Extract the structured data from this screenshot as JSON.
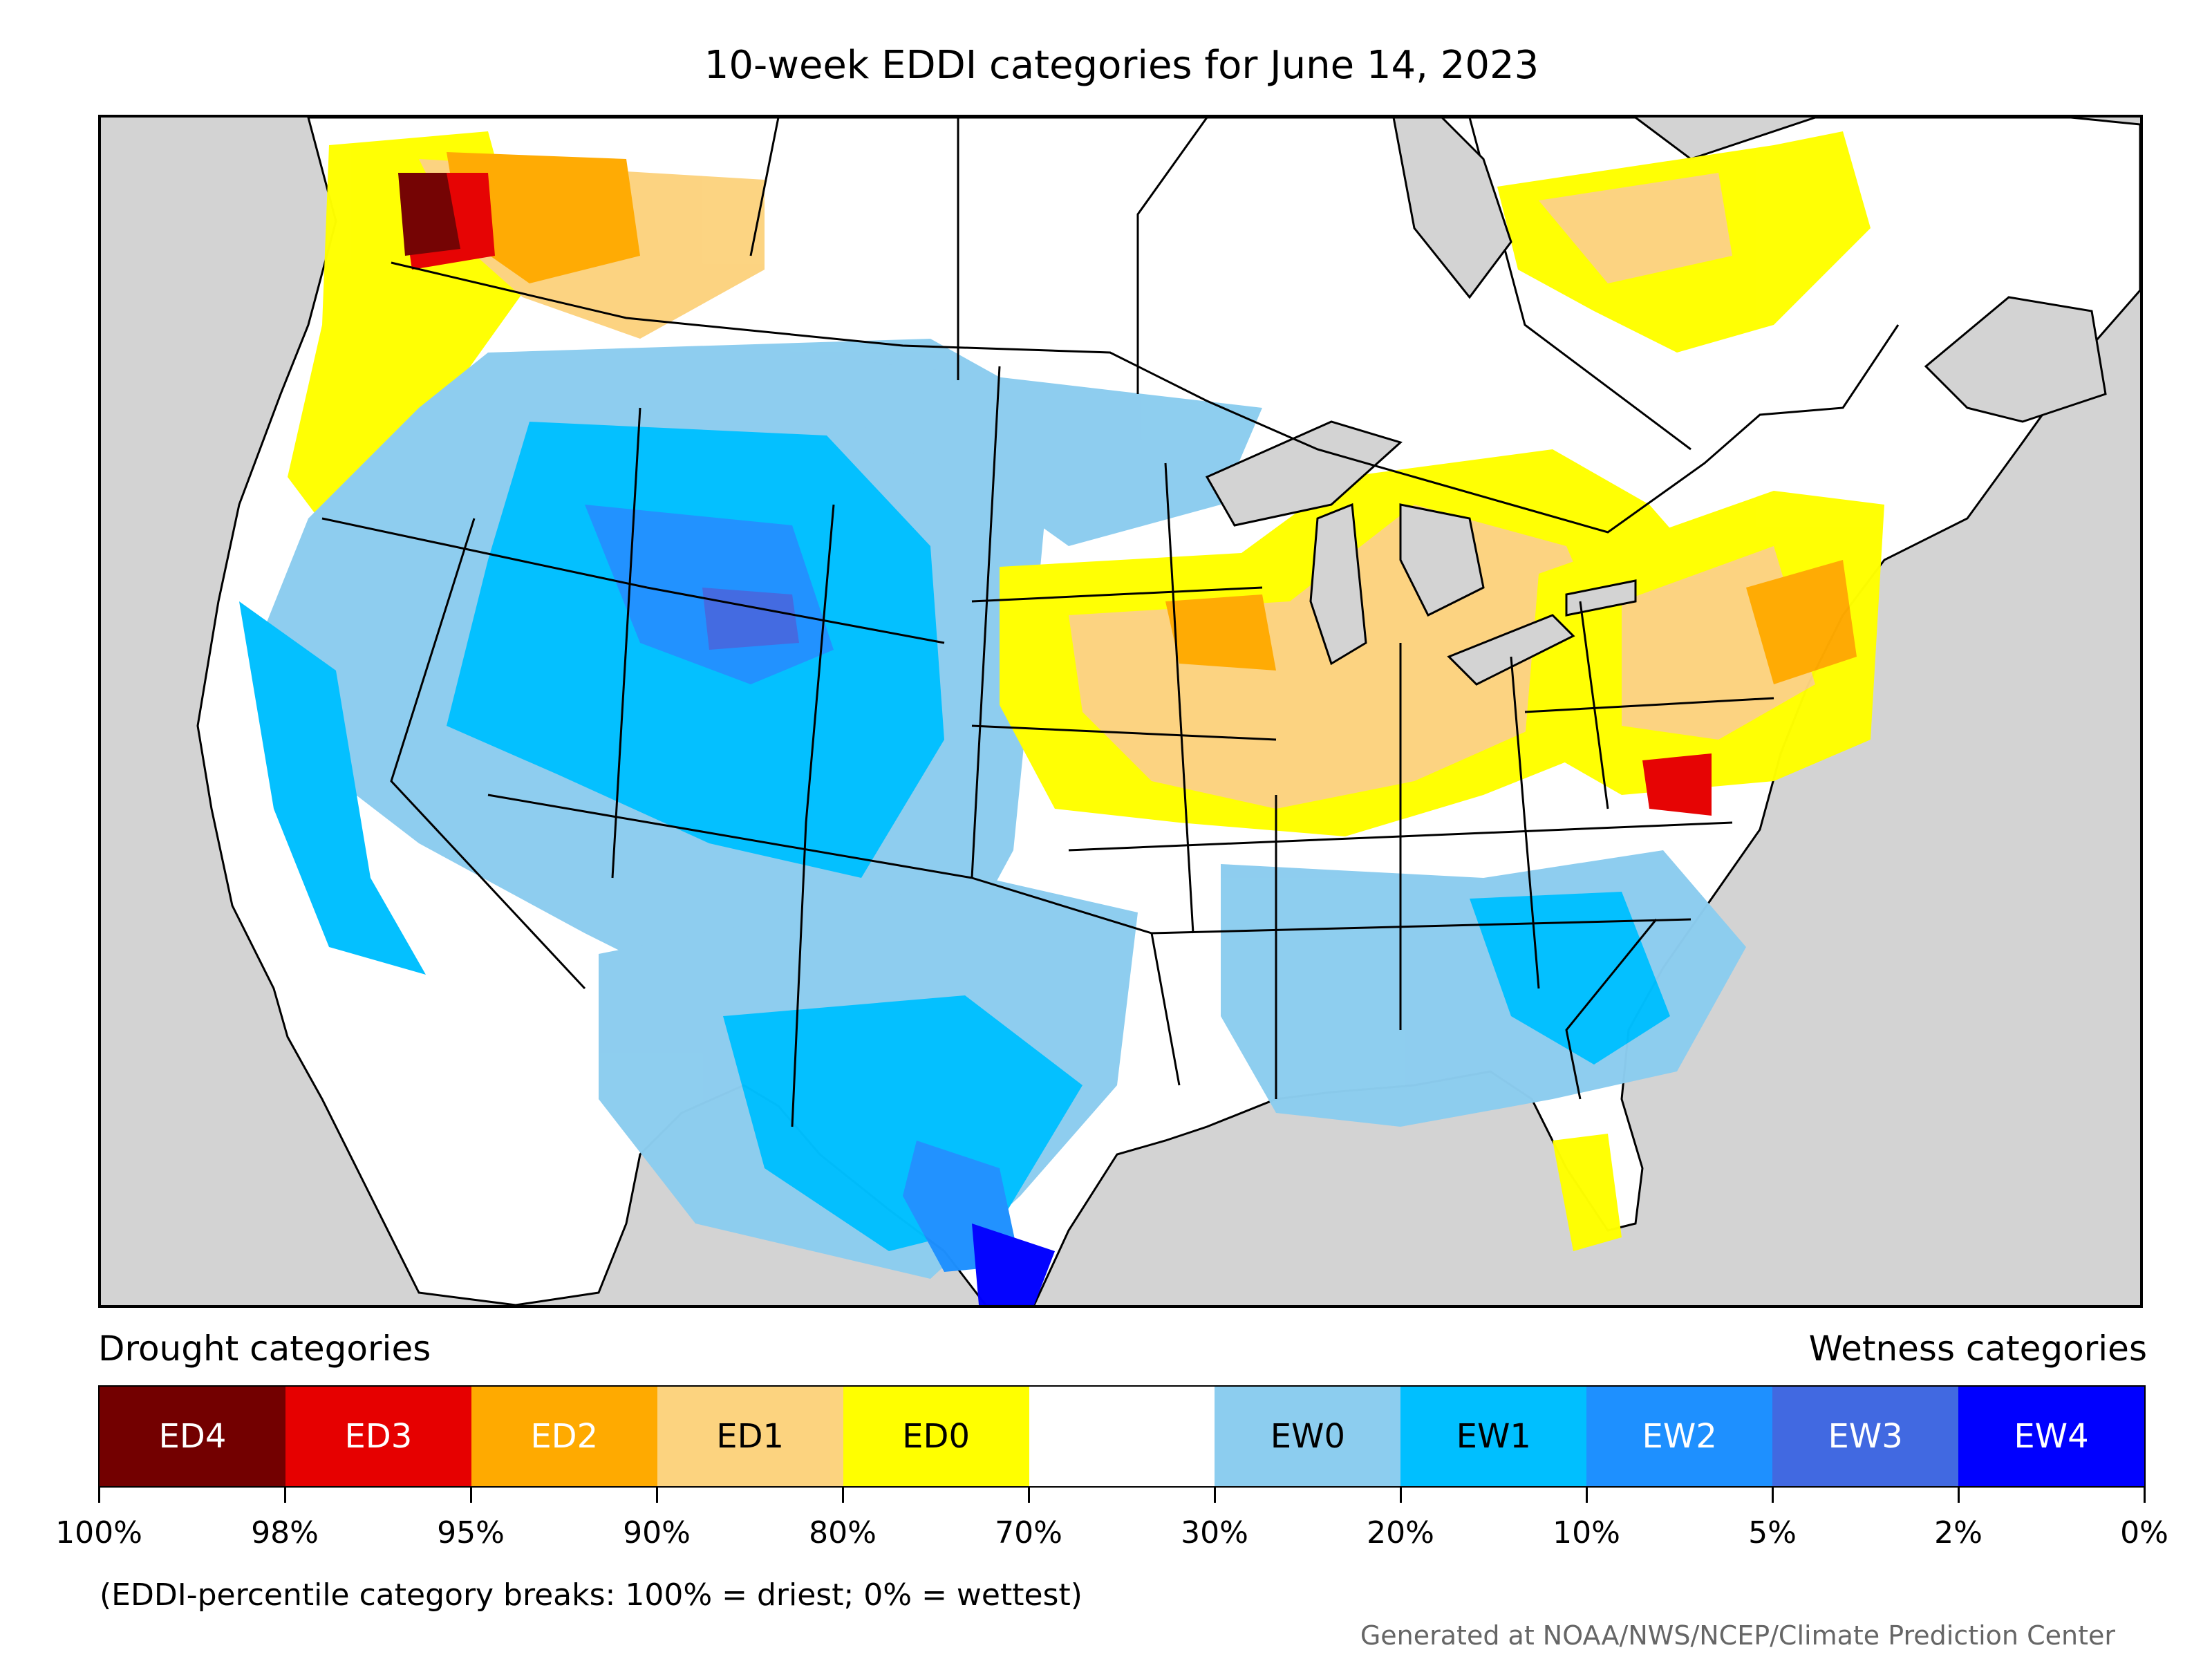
{
  "title": "10-week EDDI categories for June 14, 2023",
  "legend": {
    "drought_heading": "Drought categories",
    "wetness_heading": "Wetness categories",
    "categories": [
      {
        "label": "ED4",
        "color": "#730000",
        "text_color": "#ffffff"
      },
      {
        "label": "ED3",
        "color": "#e60000",
        "text_color": "#ffffff"
      },
      {
        "label": "ED2",
        "color": "#ffaa00",
        "text_color": "#ffffff"
      },
      {
        "label": "ED1",
        "color": "#fcd37f",
        "text_color": "#000000"
      },
      {
        "label": "ED0",
        "color": "#ffff00",
        "text_color": "#000000"
      },
      {
        "label": "",
        "color": "#ffffff",
        "text_color": "#000000"
      },
      {
        "label": "EW0",
        "color": "#8ccdef",
        "text_color": "#000000"
      },
      {
        "label": "EW1",
        "color": "#00bfff",
        "text_color": "#000000"
      },
      {
        "label": "EW2",
        "color": "#1e90ff",
        "text_color": "#ffffff"
      },
      {
        "label": "EW3",
        "color": "#4169e1",
        "text_color": "#ffffff"
      },
      {
        "label": "EW4",
        "color": "#0000ff",
        "text_color": "#ffffff"
      }
    ],
    "tick_labels": [
      "100%",
      "98%",
      "95%",
      "90%",
      "80%",
      "70%",
      "30%",
      "20%",
      "10%",
      "5%",
      "2%",
      "0%"
    ]
  },
  "note": "(EDDI-percentile category breaks: 100% = driest; 0% = wettest)",
  "credit": "Generated at NOAA/NWS/NCEP/Climate Prediction Center",
  "colors": {
    "ocean": "#d3d3d3",
    "land": "#ffffff",
    "border": "#000000"
  }
}
